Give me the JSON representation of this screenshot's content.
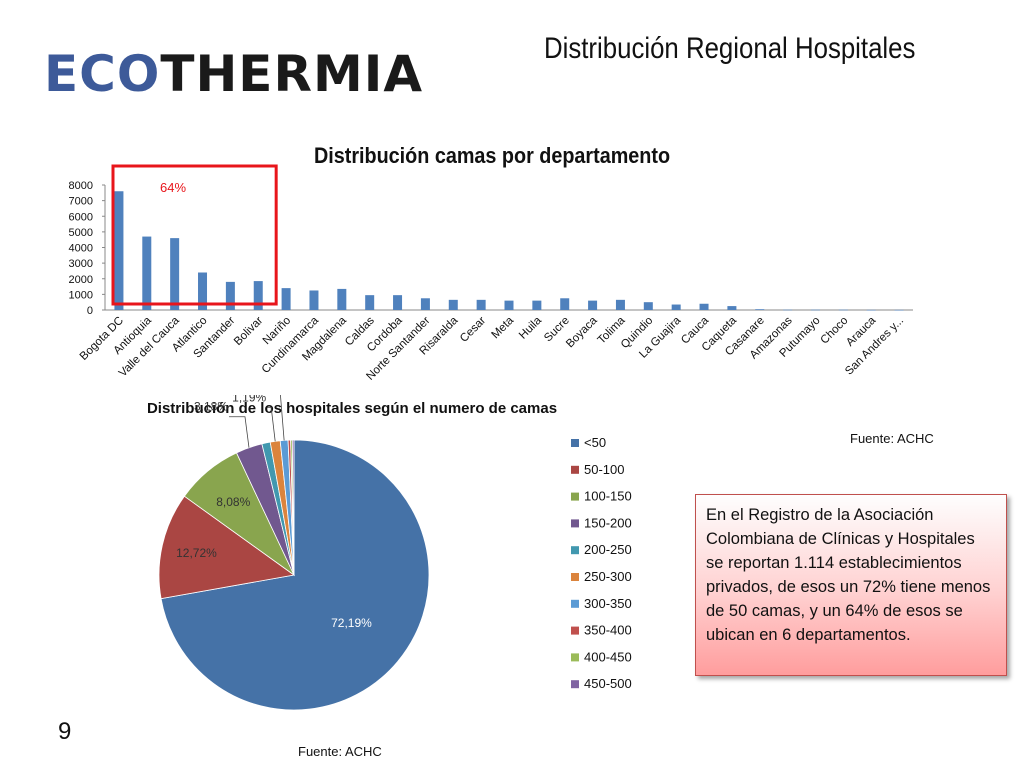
{
  "header": {
    "logo_left": "ECO",
    "logo_right": "THERMIA",
    "slide_title": "Distribución Regional Hospitales"
  },
  "note": {
    "text": "En el Registro de la Asociación Colombiana de Clínicas y Hospitales se reportan 1.114 establecimientos privados, de esos un 72% tiene menos de 50 camas, y un 64% de esos se ubican en 6 departamentos."
  },
  "sources": {
    "top": "Fuente: ACHC",
    "bottom": "Fuente: ACHC"
  },
  "page_number": "9",
  "colors": {
    "bar": "#4f81bd",
    "highlight_box": "#e8151b",
    "highlight_text": "#e8151b"
  },
  "chart_data": [
    {
      "type": "bar",
      "title": "Distribución camas por departamento",
      "categories": [
        "Bogota DC",
        "Antioquia",
        "Valle del Cauca",
        "Atlantico",
        "Santander",
        "Bolivar",
        "Nariño",
        "Cundinamarca",
        "Magdalena",
        "Caldas",
        "Cordoba",
        "Norte Santander",
        "Risaralda",
        "Cesar",
        "Meta",
        "Huila",
        "Sucre",
        "Boyaca",
        "Tolima",
        "Quindio",
        "La Guajira",
        "Cauca",
        "Caqueta",
        "Casanare",
        "Amazonas",
        "Putumayo",
        "Choco",
        "Arauca",
        "San Andres y..."
      ],
      "values": [
        7600,
        4700,
        4600,
        2400,
        1800,
        1850,
        1400,
        1250,
        1350,
        950,
        950,
        750,
        650,
        650,
        600,
        600,
        750,
        600,
        650,
        500,
        350,
        400,
        250,
        50,
        20,
        20,
        20,
        10,
        10
      ],
      "ylim": [
        0,
        8000
      ],
      "yticks": [
        "0",
        "1000",
        "2000",
        "3000",
        "4000",
        "5000",
        "6000",
        "7000",
        "8000"
      ],
      "annotation": "64%",
      "highlight": {
        "from_category": "Bogota DC",
        "to_category": "Bolivar"
      },
      "grid": false,
      "legend": "none"
    },
    {
      "type": "pie",
      "title": "Distribución de los hospitales según el numero de camas",
      "labels": [
        "<50",
        "50-100",
        "100-150",
        "150-200",
        "200-250",
        "250-300",
        "300-350",
        "350-400",
        "400-450",
        "450-500"
      ],
      "values": [
        72.19,
        12.72,
        8.08,
        3.18,
        1.0,
        1.19,
        0.93,
        0.3,
        0.2,
        0.2
      ],
      "data_labels": [
        "72,19%",
        "12,72%",
        "8,08%",
        "3,18%",
        "",
        "1,19%",
        "0,93%",
        "",
        "",
        ""
      ],
      "colors": [
        "#4572a7",
        "#aa4643",
        "#89a54e",
        "#71588f",
        "#4198af",
        "#db843d",
        "#5b9bd5",
        "#c0504d",
        "#9bbb59",
        "#8064a2"
      ],
      "legend": "right"
    }
  ]
}
